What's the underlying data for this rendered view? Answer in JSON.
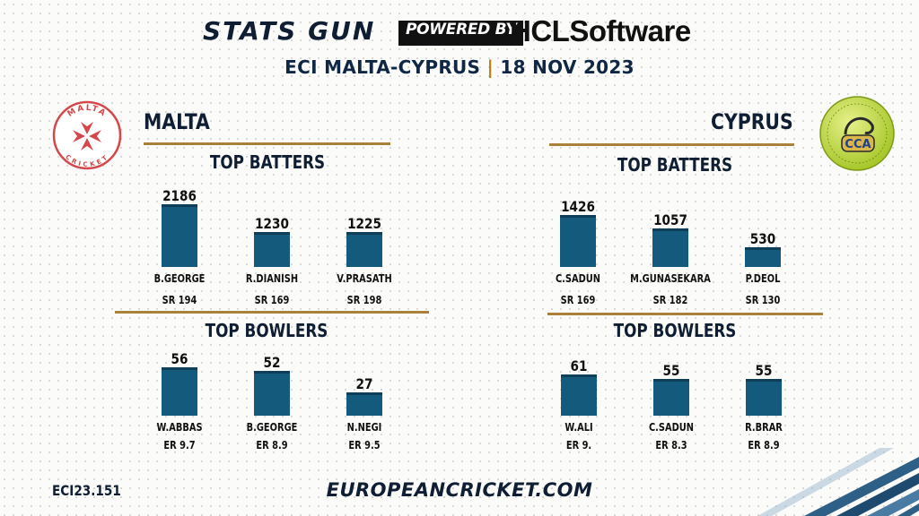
{
  "header": {
    "brand": "STATS GUN",
    "powered_by": "POWERED BY",
    "sponsor": "HCLSoftware",
    "match": "ECI MALTA-CYPRUS",
    "separator": "|",
    "date": "18 NOV 2023"
  },
  "logos": {
    "malta_text_top": "MALTA",
    "malta_text_bottom": "CRICKET",
    "cyprus_badge": "CCA"
  },
  "colors": {
    "bar": "#145a7c",
    "rule": "#a9813a",
    "malta_logo": "#d4484c",
    "cyprus_logo": "#b5d334"
  },
  "teams": [
    {
      "name": "MALTA",
      "batters_title": "TOP BATTERS",
      "bowlers_title": "TOP BOWLERS"
    },
    {
      "name": "CYPRUS",
      "batters_title": "TOP BATTERS",
      "bowlers_title": "TOP BOWLERS"
    }
  ],
  "chart_data": [
    {
      "type": "bar",
      "title": "TOP BATTERS",
      "team": "MALTA",
      "categories": [
        "B.GEORGE",
        "R.DIANISH",
        "V.PRASATH"
      ],
      "values": [
        2186,
        1230,
        1225
      ],
      "stats": [
        "SR 194",
        "SR 169",
        "SR 198"
      ]
    },
    {
      "type": "bar",
      "title": "TOP BATTERS",
      "team": "CYPRUS",
      "categories": [
        "C.SADUN",
        "M.GUNASEKARA",
        "P.DEOL"
      ],
      "values": [
        1426,
        1057,
        530
      ],
      "stats": [
        "SR 169",
        "SR 182",
        "SR 130"
      ]
    },
    {
      "type": "bar",
      "title": "TOP BOWLERS",
      "team": "MALTA",
      "categories": [
        "W.ABBAS",
        "B.GEORGE",
        "N.NEGI"
      ],
      "values": [
        56,
        52,
        27
      ],
      "stats": [
        "ER 9.7",
        "ER 8.9",
        "ER 9.5"
      ]
    },
    {
      "type": "bar",
      "title": "TOP BOWLERS",
      "team": "CYPRUS",
      "categories": [
        "W.ALI",
        "C.SADUN",
        "R.BRAR"
      ],
      "values": [
        61,
        55,
        55
      ],
      "stats": [
        "ER 9.",
        "ER 8.3",
        "ER 8.9"
      ]
    }
  ],
  "footer": {
    "code": "ECI23.151",
    "website": "EUROPEANCRICKET.COM"
  }
}
